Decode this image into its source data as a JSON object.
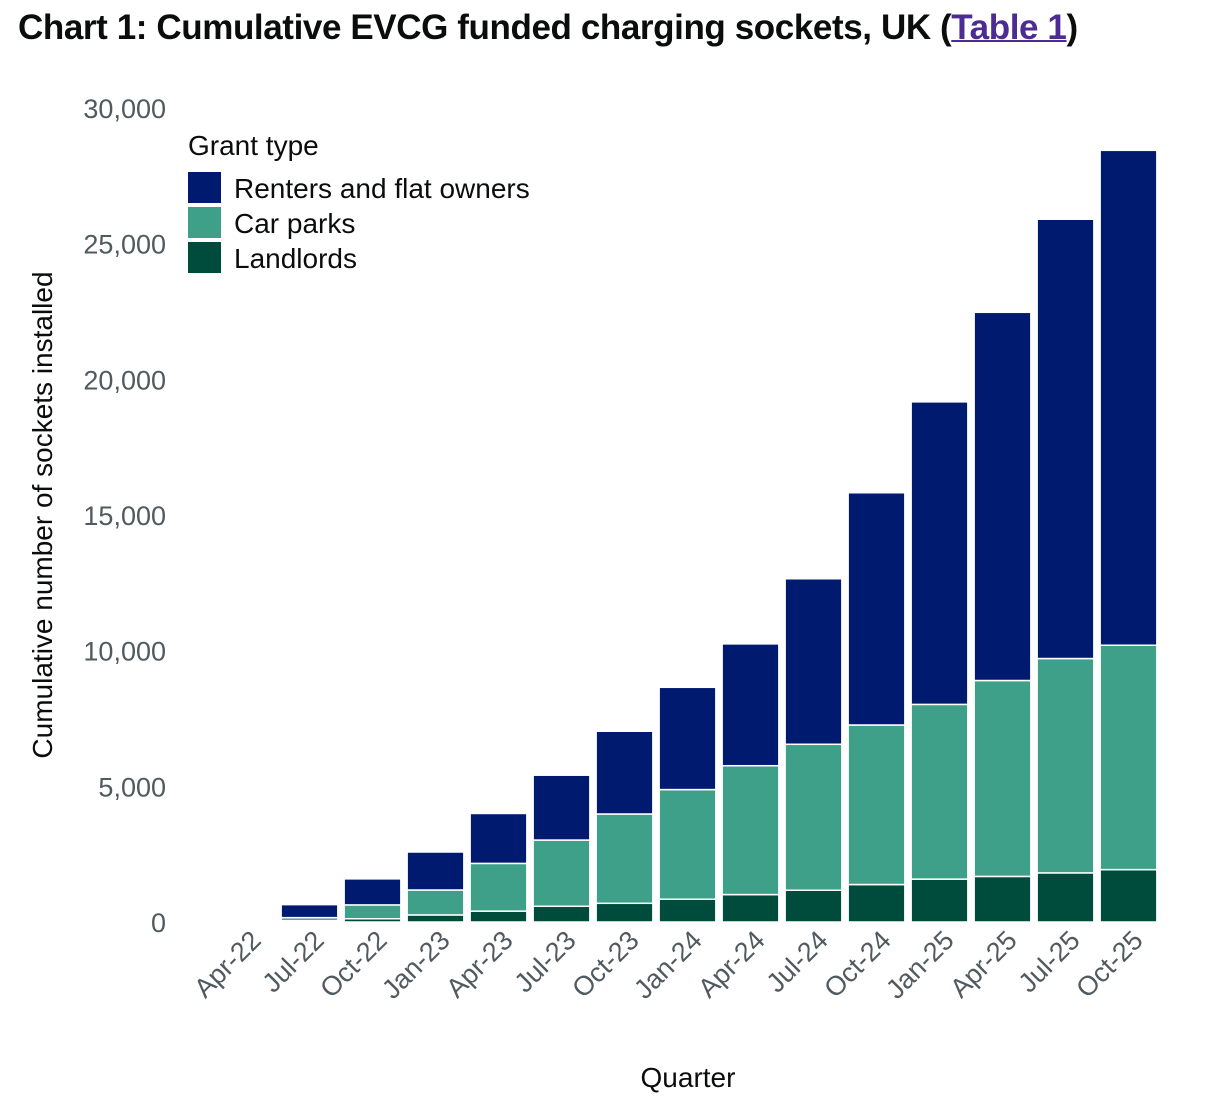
{
  "title": {
    "prefix": "Chart 1: Cumulative EVCG funded charging sockets, UK (",
    "link": "Table 1",
    "suffix": ")"
  },
  "colors": {
    "renters": "#001a70",
    "car_parks": "#3fa089",
    "landlords": "#004c3c",
    "link": "#4c2c92"
  },
  "chart_data": {
    "type": "bar",
    "stacked": true,
    "xlabel": "Quarter",
    "ylabel": "Cumulative number of sockets installed",
    "ylim": [
      0,
      30000
    ],
    "yticks": [
      0,
      5000,
      10000,
      15000,
      20000,
      25000,
      30000
    ],
    "ytick_labels": [
      "0",
      "5,000",
      "10,000",
      "15,000",
      "20,000",
      "25,000",
      "30,000"
    ],
    "grid": false,
    "legend": {
      "title": "Grant type",
      "placement": "top-left"
    },
    "categories": [
      "Apr-22",
      "Jul-22",
      "Oct-22",
      "Jan-23",
      "Apr-23",
      "Jul-23",
      "Oct-23",
      "Jan-24",
      "Apr-24",
      "Jul-24",
      "Oct-24",
      "Jan-25",
      "Apr-25",
      "Jul-25",
      "Oct-25"
    ],
    "series": [
      {
        "name": "Landlords",
        "color": "#004c3c",
        "values": [
          10,
          50,
          120,
          260,
          400,
          580,
          690,
          840,
          1010,
          1170,
          1380,
          1580,
          1680,
          1810,
          1930
        ]
      },
      {
        "name": "Car parks",
        "color": "#3fa089",
        "values": [
          10,
          110,
          510,
          920,
          1760,
          2440,
          3290,
          4040,
          4750,
          5380,
          5880,
          6440,
          7220,
          7900,
          8270
        ]
      },
      {
        "name": "Renters and flat owners",
        "color": "#001a70",
        "values": [
          10,
          480,
          960,
          1400,
          1840,
          2390,
          3050,
          3770,
          4490,
          6100,
          8560,
          11150,
          13570,
          16190,
          18240
        ]
      }
    ]
  }
}
